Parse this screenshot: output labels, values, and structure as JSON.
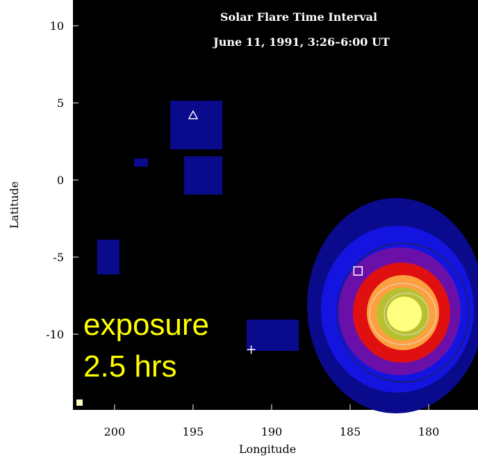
{
  "chart_data": {
    "type": "scatter",
    "title": "Solar Flare Time Interval",
    "subtitle": "June 11, 1991, 3:26–6:00 UT",
    "x_label": "Longitude",
    "y_label": "Latitude",
    "annotation": [
      "exposure",
      "2.5 hrs"
    ],
    "xlim": [
      202.65,
      176.86
    ],
    "ylim": [
      -14.91,
      11.67
    ],
    "xticks": [
      200,
      195,
      190,
      185,
      180
    ],
    "yticks": [
      10,
      5,
      0,
      -5,
      -10
    ],
    "markers": {
      "x": [
        195.0,
        184.5,
        191.3
      ],
      "y": [
        4.2,
        -5.9,
        -11.0
      ],
      "shapes": [
        "triangle",
        "square",
        "cross"
      ]
    },
    "color": "#ffffff"
  }
}
